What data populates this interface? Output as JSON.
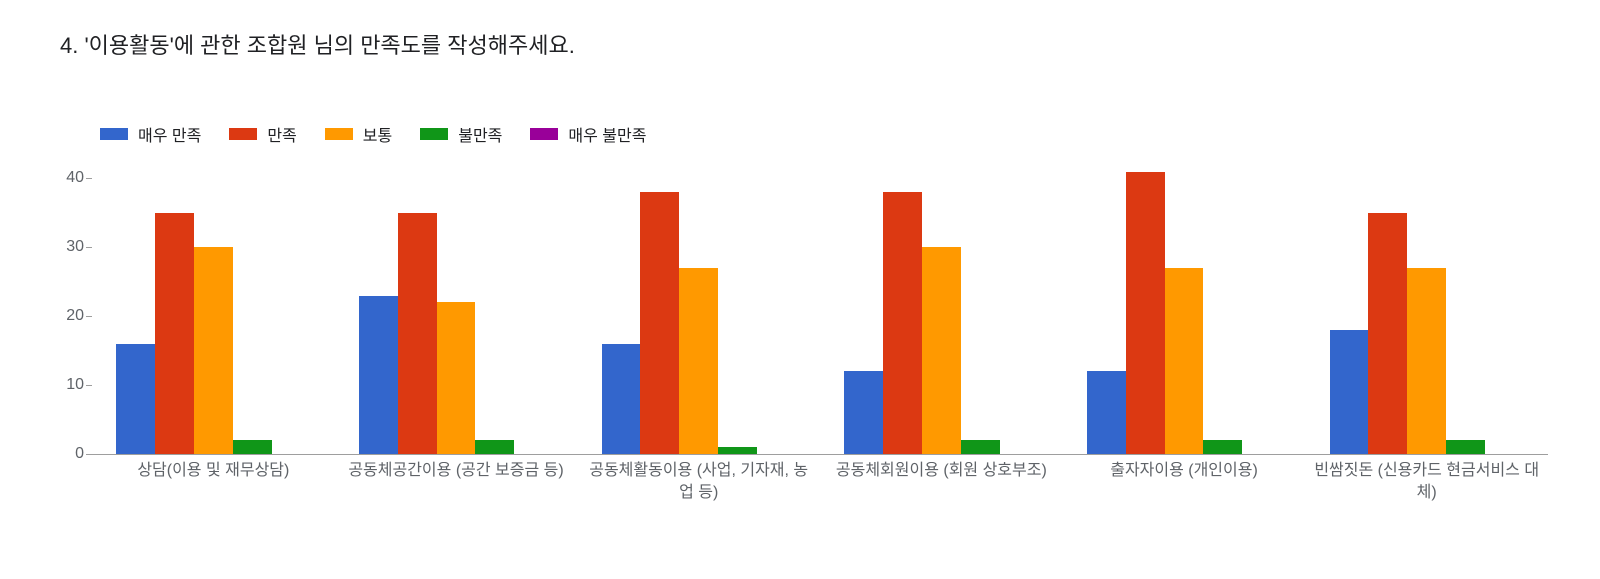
{
  "title": "4. '이용활동'에 관한 조합원 님의 만족도를 작성해주세요.",
  "chart": {
    "type": "bar",
    "background_color": "#ffffff",
    "grid_color": "#e0e0e0",
    "axis_color": "#9e9e9e",
    "text_color": "#5f6368",
    "title_color": "#202124",
    "title_fontsize": 22,
    "label_fontsize": 16,
    "tick_fontsize": 16,
    "ylim": [
      0,
      45
    ],
    "ytick_step": 10,
    "yticks": [
      0,
      10,
      20,
      30,
      40
    ],
    "bar_group_inner_width": 0.8,
    "categories": [
      "상담(이용 및 재무상담)",
      "공동체공간이용 (공간 보증금 등)",
      "공동체활동이용 (사업, 기자재, 농업 등)",
      "공동체회원이용 (회원 상호부조)",
      "출자자이용 (개인이용)",
      "빈쌈짓돈 (신용카드 현금서비스 대체)"
    ],
    "series": [
      {
        "name": "매우 만족",
        "color": "#3366cc",
        "values": [
          16,
          23,
          16,
          12,
          12,
          18
        ]
      },
      {
        "name": "만족",
        "color": "#dc3912",
        "values": [
          35,
          35,
          38,
          38,
          41,
          35
        ]
      },
      {
        "name": "보통",
        "color": "#ff9900",
        "values": [
          30,
          22,
          27,
          30,
          27,
          27
        ]
      },
      {
        "name": "불만족",
        "color": "#109618",
        "values": [
          2,
          2,
          1,
          2,
          2,
          2
        ]
      },
      {
        "name": "매우 불만족",
        "color": "#990099",
        "values": [
          0,
          0,
          0,
          0,
          0,
          0
        ]
      }
    ]
  }
}
